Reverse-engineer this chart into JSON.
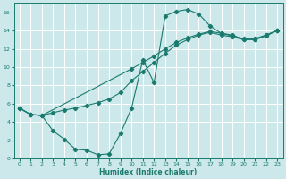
{
  "xlabel": "Humidex (Indice chaleur)",
  "xlim": [
    -0.5,
    23.5
  ],
  "ylim": [
    0,
    17
  ],
  "xticks": [
    0,
    1,
    2,
    3,
    4,
    5,
    6,
    7,
    8,
    9,
    10,
    11,
    12,
    13,
    14,
    15,
    16,
    17,
    18,
    19,
    20,
    21,
    22,
    23
  ],
  "yticks": [
    0,
    2,
    4,
    6,
    8,
    10,
    12,
    14,
    16
  ],
  "bg_color": "#cce8ea",
  "grid_color": "#ffffff",
  "line_color": "#1a7a6e",
  "line1_x": [
    0,
    1,
    2,
    3,
    4,
    5,
    6,
    7,
    8,
    9,
    10,
    11,
    12,
    13,
    14,
    15,
    16,
    17,
    18,
    19,
    20,
    21,
    22,
    23
  ],
  "line1_y": [
    5.5,
    4.8,
    4.7,
    3.0,
    2.1,
    1.0,
    0.9,
    0.4,
    0.5,
    2.7,
    5.5,
    10.8,
    8.3,
    15.6,
    16.1,
    16.3,
    15.8,
    14.5,
    13.7,
    13.5,
    13.0,
    13.0,
    13.5,
    14.0
  ],
  "line2_x": [
    0,
    1,
    2,
    3,
    4,
    5,
    6,
    7,
    8,
    9,
    10,
    11,
    12,
    13,
    14,
    15,
    16,
    17,
    18,
    19,
    20,
    21,
    22,
    23
  ],
  "line2_y": [
    5.5,
    4.8,
    4.7,
    5.0,
    5.3,
    5.5,
    5.8,
    6.1,
    6.5,
    7.2,
    8.5,
    9.5,
    10.5,
    11.5,
    12.4,
    13.0,
    13.5,
    13.8,
    13.5,
    13.3,
    13.0,
    13.1,
    13.5,
    14.0
  ],
  "line3_x": [
    0,
    1,
    2,
    10,
    11,
    12,
    13,
    14,
    15,
    16,
    17,
    18,
    19,
    20,
    21,
    22,
    23
  ],
  "line3_y": [
    5.5,
    4.8,
    4.7,
    9.8,
    10.5,
    11.2,
    12.0,
    12.7,
    13.2,
    13.6,
    13.9,
    13.7,
    13.4,
    13.1,
    13.0,
    13.4,
    14.0
  ]
}
